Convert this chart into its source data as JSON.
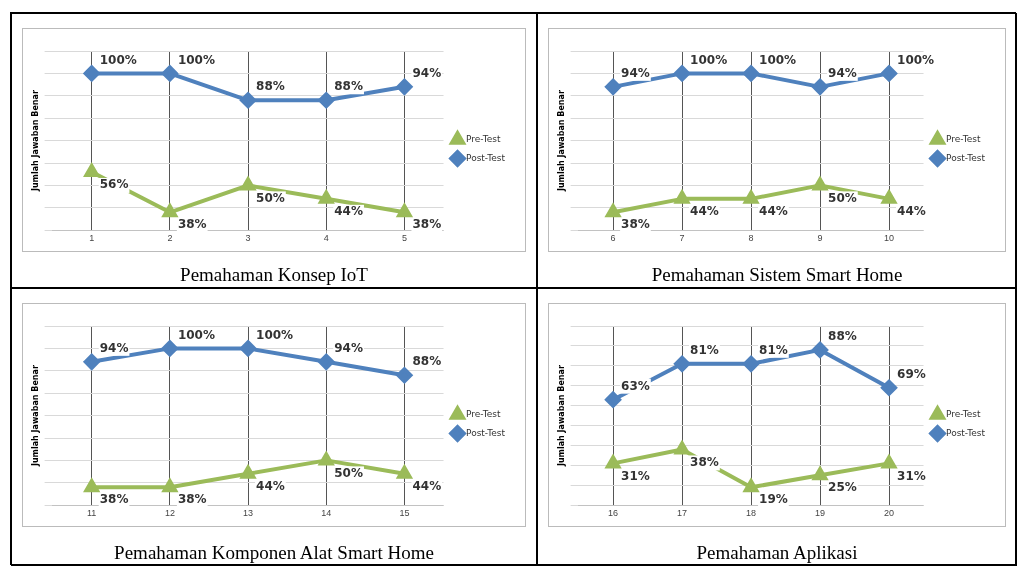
{
  "chart_data": [
    {
      "type": "line",
      "title": "Pemahaman Konsep IoT",
      "ylabel": "Jumlah Jawaban Benar",
      "categories": [
        "1",
        "2",
        "3",
        "4",
        "5"
      ],
      "grid": true,
      "legend": "right",
      "tick_labels": "x",
      "data_labels": true,
      "series": [
        {
          "name": "Pre-Test",
          "color": "#9bbb59",
          "marker": "triangle",
          "values": [
            56,
            38,
            50,
            44,
            38
          ],
          "value_labels": [
            "56%",
            "38%",
            "50%",
            "44%",
            "38%"
          ]
        },
        {
          "name": "Post-Test",
          "color": "#4f81bd",
          "marker": "diamond",
          "values": [
            100,
            100,
            88,
            88,
            94
          ],
          "value_labels": [
            "100%",
            "100%",
            "88%",
            "88%",
            "94%"
          ]
        }
      ]
    },
    {
      "type": "line",
      "title": "Pemahaman Sistem Smart Home",
      "ylabel": "Jumlah Jawaban Benar",
      "categories": [
        "6",
        "7",
        "8",
        "9",
        "10"
      ],
      "grid": true,
      "legend": "right",
      "tick_labels": "x",
      "data_labels": true,
      "series": [
        {
          "name": "Pre-Test",
          "color": "#9bbb59",
          "marker": "triangle",
          "values": [
            38,
            44,
            44,
            50,
            44
          ],
          "value_labels": [
            "38%",
            "44%",
            "44%",
            "50%",
            "44%"
          ]
        },
        {
          "name": "Post-Test",
          "color": "#4f81bd",
          "marker": "diamond",
          "values": [
            94,
            100,
            100,
            94,
            100
          ],
          "value_labels": [
            "94%",
            "100%",
            "100%",
            "94%",
            "100%"
          ]
        }
      ]
    },
    {
      "type": "line",
      "title": "Pemahaman Komponen Alat Smart Home",
      "ylabel": "Jumlah Jawaban Benar",
      "categories": [
        "11",
        "12",
        "13",
        "14",
        "15"
      ],
      "grid": true,
      "legend": "right",
      "tick_labels": "x",
      "data_labels": true,
      "series": [
        {
          "name": "Pre-Test",
          "color": "#9bbb59",
          "marker": "triangle",
          "values": [
            38,
            38,
            44,
            50,
            44
          ],
          "value_labels": [
            "38%",
            "38%",
            "44%",
            "50%",
            "44%"
          ]
        },
        {
          "name": "Post-Test",
          "color": "#4f81bd",
          "marker": "diamond",
          "values": [
            94,
            100,
            100,
            94,
            88
          ],
          "value_labels": [
            "94%",
            "100%",
            "100%",
            "94%",
            "88%"
          ]
        }
      ]
    },
    {
      "type": "line",
      "title": "Pemahaman Aplikasi",
      "ylabel": "Jumlah Jawaban Benar",
      "categories": [
        "16",
        "17",
        "18",
        "19",
        "20"
      ],
      "grid": true,
      "legend": "right",
      "tick_labels": "x",
      "data_labels": true,
      "series": [
        {
          "name": "Pre-Test",
          "color": "#9bbb59",
          "marker": "triangle",
          "values": [
            31,
            38,
            19,
            25,
            31
          ],
          "value_labels": [
            "31%",
            "38%",
            "19%",
            "25%",
            "31%"
          ]
        },
        {
          "name": "Post-Test",
          "color": "#4f81bd",
          "marker": "diamond",
          "values": [
            63,
            81,
            81,
            88,
            69
          ],
          "value_labels": [
            "63%",
            "81%",
            "81%",
            "88%",
            "69%"
          ]
        }
      ]
    }
  ]
}
